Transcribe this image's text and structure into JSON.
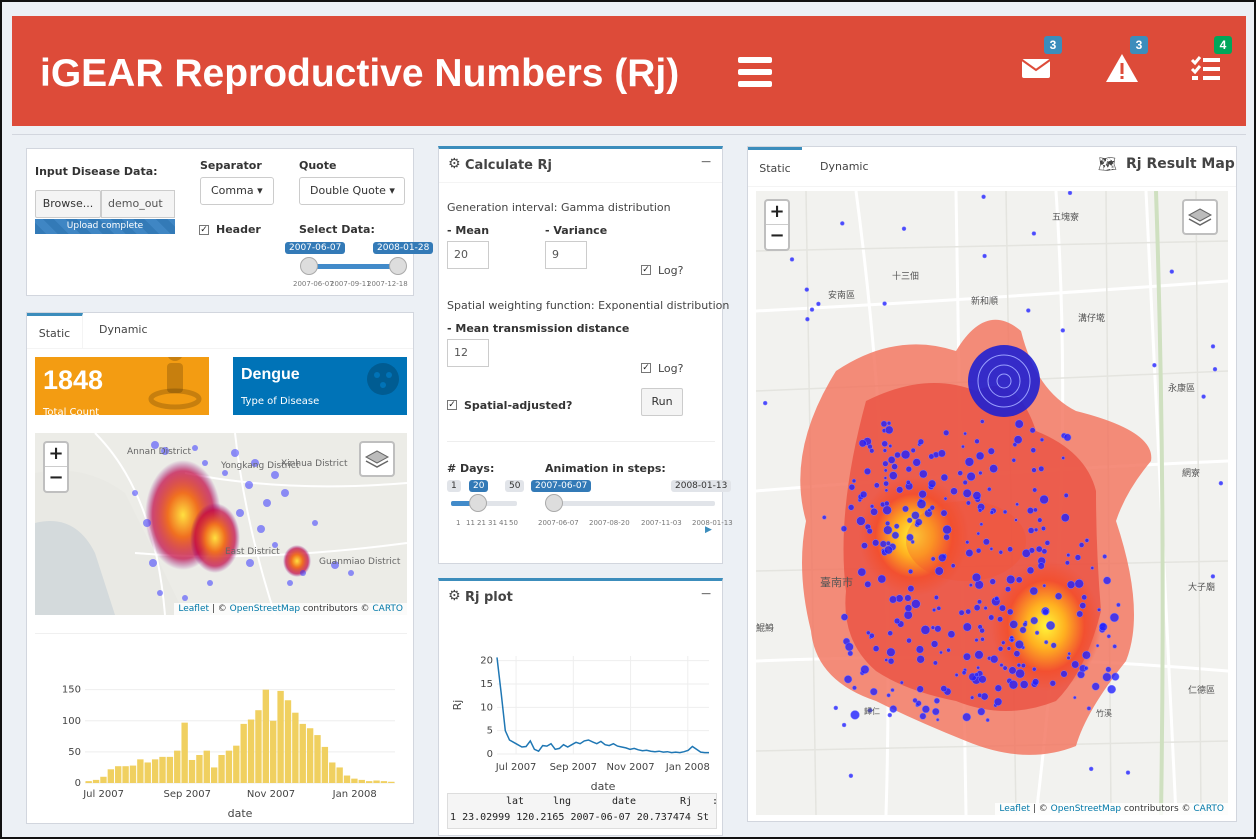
{
  "header": {
    "title": "iGEAR Reproductive Numbers (Rj)",
    "messages_count": "3",
    "alerts_count": "3",
    "tasks_count": "4",
    "colors": {
      "header": "#dd4b39",
      "badge_blue": "#3c8dbc",
      "badge_green": "#00a65a"
    }
  },
  "input_box": {
    "input_label": "Input Disease Data:",
    "browse_label": "Browse...",
    "file_name": "demo_out",
    "upload_status": "Upload complete",
    "separator_label": "Separator",
    "separator_value": "Comma",
    "quote_label": "Quote",
    "quote_value": "Double Quote",
    "header_checkbox_label": "Header",
    "select_data_label": "Select Data:",
    "date_from": "2007-06-07",
    "date_to": "2008-01-28",
    "ticks": [
      "2007-06-07",
      "2007-09-11",
      "2007-12-18"
    ]
  },
  "left_panel": {
    "tabs": [
      "Static",
      "Dynamic"
    ],
    "count_value": "1848",
    "count_label": "Total Count",
    "disease_value": "Dengue",
    "disease_label": "Type of Disease",
    "map_labels": [
      "Annan District",
      "Yongkang District",
      "Xinhua District",
      "East District",
      "Guanmiao District"
    ],
    "attribution": {
      "leaflet": "Leaflet",
      "sep": " | © ",
      "osm": "OpenStreetMap",
      "contrib": " contributors © ",
      "carto": "CARTO"
    },
    "zoom_in": "+",
    "zoom_out": "−"
  },
  "histogram": {
    "chart_data": {
      "type": "bar",
      "xlabel": "date",
      "y_ticks": [
        0,
        50,
        100,
        150
      ],
      "ylim": [
        0,
        180
      ],
      "x_ticks": [
        "Jul 2007",
        "Sep 2007",
        "Nov 2007",
        "Jan 2008"
      ],
      "values": [
        3,
        5,
        10,
        22,
        27,
        27,
        28,
        38,
        33,
        38,
        42,
        42,
        52,
        97,
        37,
        45,
        52,
        25,
        45,
        52,
        60,
        95,
        102,
        117,
        150,
        100,
        148,
        133,
        113,
        95,
        88,
        77,
        58,
        33,
        25,
        12,
        7,
        5,
        3,
        4,
        3,
        2
      ],
      "color": "#f0d060"
    }
  },
  "calc_box": {
    "title": "Calculate Rj",
    "gen_interval_label": "Generation interval: Gamma distribution",
    "mean_label": "- Mean",
    "mean_value": "20",
    "variance_label": "- Variance",
    "variance_value": "9",
    "log_label": "Log?",
    "spatial_label": "Spatial weighting function: Exponential distribution",
    "mean_dist_label": "- Mean transmission distance",
    "mean_dist_value": "12",
    "log2_label": "Log?",
    "spatial_adjusted_label": "Spatial-adjusted?",
    "run_label": "Run",
    "days_label": "# Days:",
    "days_min": "1",
    "days_value": "20",
    "days_max": "50",
    "days_ticks": [
      "1",
      "11",
      "21",
      "31",
      "41",
      "50"
    ],
    "anim_label": "Animation in steps:",
    "anim_from": "2007-06-07",
    "anim_to": "2008-01-13",
    "anim_ticks": [
      "2007-06-07",
      "2007-08-20",
      "2007-11-03",
      "2008-01-13"
    ]
  },
  "rj_plot_box": {
    "title": "Rj plot",
    "chart_data": {
      "type": "line",
      "ylabel": "Rj",
      "xlabel": "date",
      "y_ticks": [
        0,
        5,
        10,
        15,
        20
      ],
      "ylim": [
        0,
        21
      ],
      "x_ticks": [
        "Jul 2007",
        "Sep 2007",
        "Nov 2007",
        "Jan 2008"
      ],
      "series": [
        {
          "values": [
            20.7,
            13,
            5,
            3,
            2.5,
            2,
            1.5,
            1.6,
            2.8,
            1,
            0.6,
            1.8,
            1.7,
            2.2,
            1,
            1.2,
            2,
            1.5,
            2,
            2.5,
            2.2,
            2.8,
            3,
            2.6,
            2.2,
            2.7,
            2,
            1.8,
            2.2,
            1.7,
            1.5,
            1.3,
            1,
            1.2,
            0.9,
            0.7,
            0.8,
            0.6,
            0.5,
            0.6,
            0.4,
            0.5,
            0.3,
            0.4,
            0.3,
            0.5,
            0.8,
            1.6,
            1,
            0.4,
            0.3,
            0.3
          ]
        }
      ],
      "color": "#1f77b4"
    },
    "table": {
      "headers": [
        "lat",
        "lng",
        "date",
        "Rj"
      ],
      "row": [
        "1",
        "23.02999",
        "120.2165",
        "2007-06-07",
        "20.737474",
        "St"
      ]
    }
  },
  "result_map_box": {
    "tabs": [
      "Static",
      "Dynamic"
    ],
    "title": "Rj Result Map",
    "place_labels": [
      "五塊寮",
      "十三佃",
      "安南區",
      "新和順",
      "溝仔墘",
      "永康區",
      "網寮",
      "臺南市",
      "大子廟",
      "鯤鯓",
      "仁德區",
      "歸仁",
      "竹溪"
    ],
    "attribution": {
      "leaflet": "Leaflet",
      "sep": " | © ",
      "osm": "OpenStreetMap",
      "contrib": " contributors © ",
      "carto": "CARTO"
    },
    "zoom_in": "+",
    "zoom_out": "−"
  }
}
